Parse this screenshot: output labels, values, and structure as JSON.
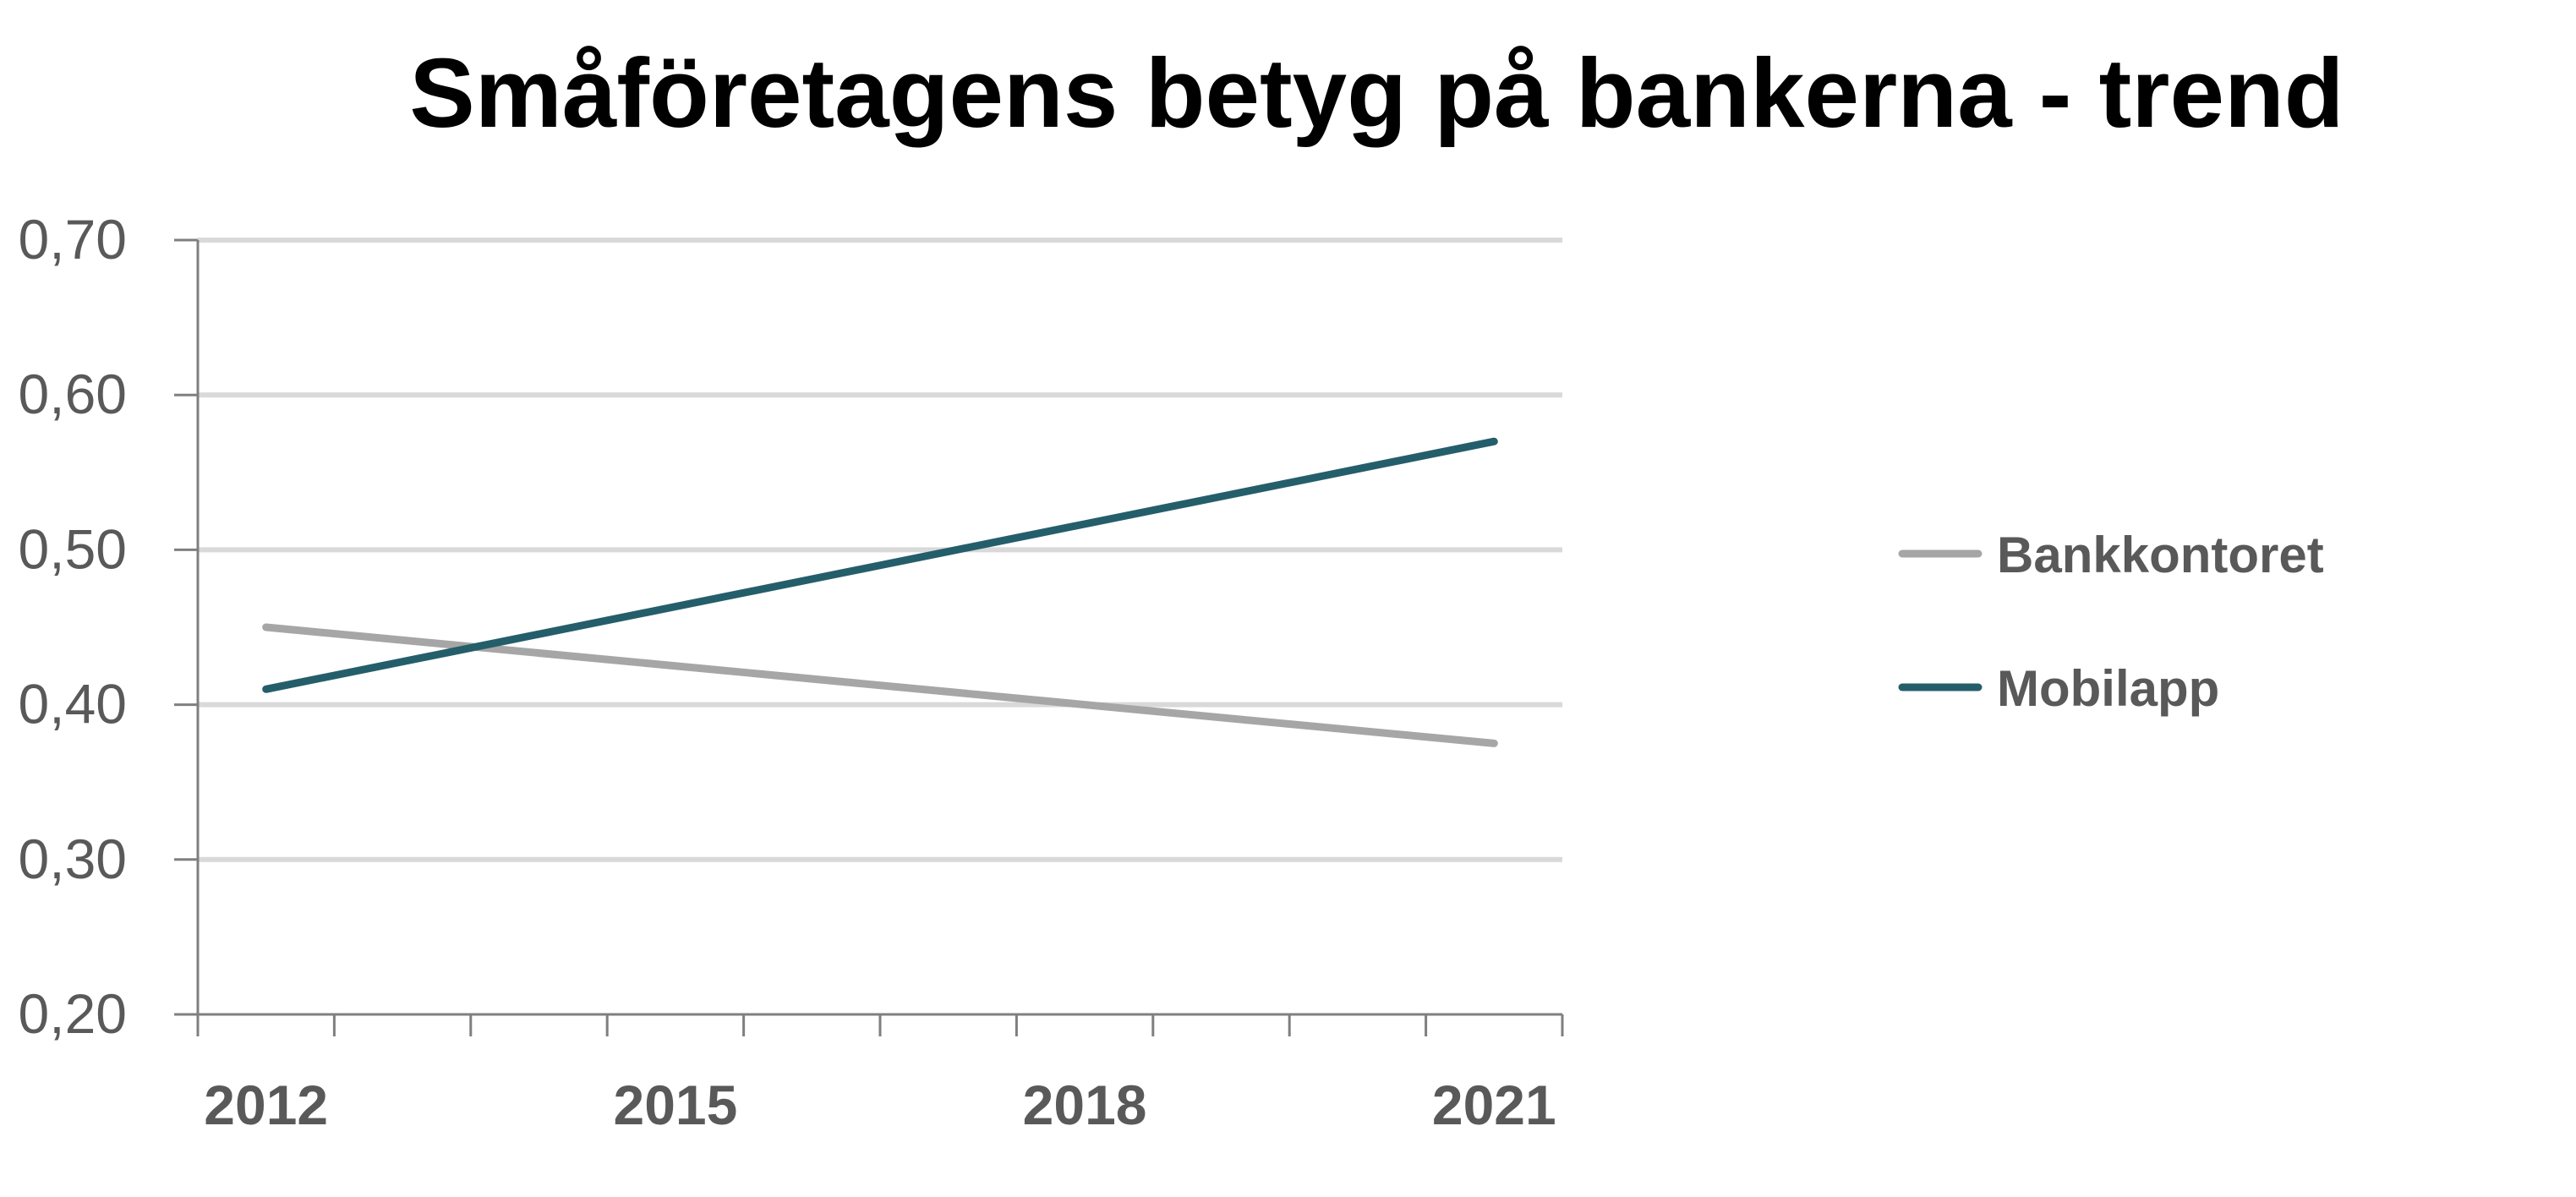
{
  "chart_data": {
    "type": "line",
    "title": "Småföretagens betyg på bankerna - trend",
    "xlabel": "",
    "ylabel": "",
    "x": [
      2012,
      2021
    ],
    "x_ticks": [
      "2012",
      "2015",
      "2018",
      "2021"
    ],
    "ylim": [
      0.2,
      0.7
    ],
    "y_ticks": [
      "0,70",
      "0,60",
      "0,50",
      "0,40",
      "0,30",
      "0,20"
    ],
    "grid": true,
    "legend_position": "right",
    "series": [
      {
        "name": "Bankkontoret",
        "color": "#a6a6a6",
        "values": [
          0.45,
          0.375
        ]
      },
      {
        "name": "Mobilapp",
        "color": "#255e6b",
        "values": [
          0.41,
          0.57
        ]
      }
    ]
  }
}
